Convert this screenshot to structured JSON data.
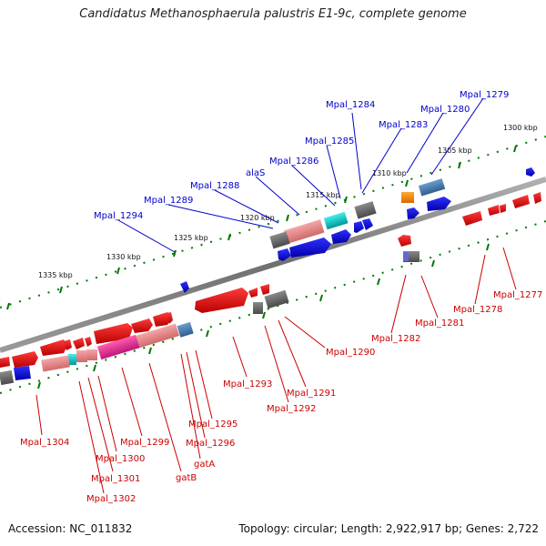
{
  "title": "Candidatus Methanosphaerula palustris E1-9c, complete genome",
  "footer": {
    "accession": "Accession: NC_011832",
    "topology": "Topology: circular; Length: 2,922,917 bp; Genes: 2,722"
  },
  "scale_labels": [
    "1300 kbp",
    "1305 kbp",
    "1310 kbp",
    "1315 kbp",
    "1320 kbp",
    "1325 kbp",
    "1330 kbp",
    "1335 kbp"
  ],
  "gene_labels_top": [
    "Mpal_1279",
    "Mpal_1280",
    "Mpal_1283",
    "Mpal_1284",
    "Mpal_1285",
    "Mpal_1286",
    "alaS",
    "Mpal_1288",
    "Mpal_1289",
    "Mpal_1294"
  ],
  "gene_labels_bottom": [
    "Mpal_1277",
    "Mpal_1278",
    "Mpal_1281",
    "Mpal_1282",
    "Mpal_1290",
    "Mpal_1291",
    "Mpal_1292",
    "Mpal_1293",
    "Mpal_1295",
    "Mpal_1296",
    "gatA",
    "gatB",
    "Mpal_1299",
    "Mpal_1300",
    "Mpal_1301",
    "Mpal_1302",
    "Mpal_1304"
  ],
  "colors": {
    "forward_strand": "#0000ee",
    "reverse_strand": "#ee0000",
    "backbone": "#888888",
    "ticks": "#007700",
    "grey_feature": "#666666",
    "cyan_feature": "#00cccc",
    "pink_feature": "#ee3399",
    "salmon_feature": "#ee8888",
    "orange_feature": "#ff8800",
    "steelblue_feature": "#4477aa"
  }
}
